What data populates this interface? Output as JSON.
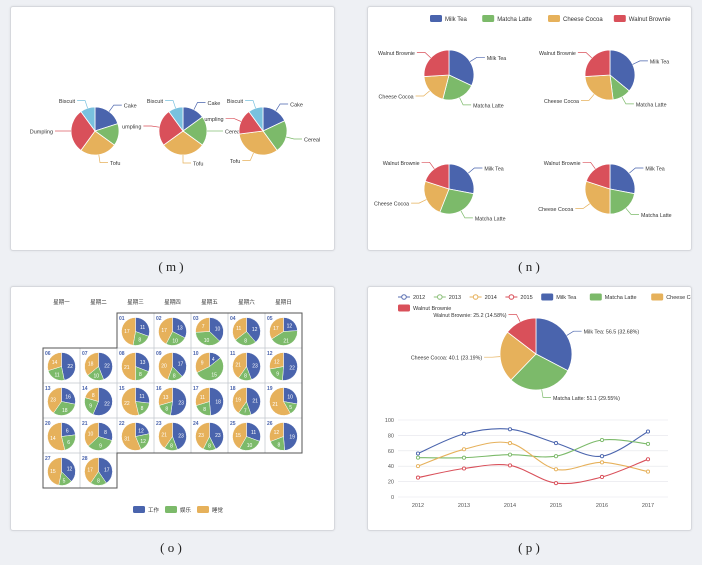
{
  "captions": [
    "( m )",
    "( n )",
    "( o )",
    "( p )"
  ],
  "colors": {
    "blue": "#4a64ad",
    "green": "#7cba6a",
    "orange": "#e6b15b",
    "red": "#d9505a",
    "lightblue": "#79c1de",
    "teal": "#39a4a4"
  },
  "chart_data": [
    {
      "type": "pie",
      "panel": "m",
      "pies": [
        {
          "labels": [
            "Cake",
            "Cereal",
            "Tofu",
            "Dumpling",
            "Biscuit"
          ],
          "values": [
            20,
            15,
            25,
            30,
            10
          ],
          "shown": [
            "Cake",
            "Tofu",
            "Dumpling",
            "Biscuit"
          ]
        },
        {
          "labels": [
            "Cake",
            "Cereal",
            "Tofu",
            "Dumpling",
            "Biscuit"
          ],
          "values": [
            15,
            20,
            30,
            25,
            10
          ],
          "shown": [
            "Cake",
            "Cereal",
            "Tofu",
            "Dumpling",
            "Biscuit"
          ]
        },
        {
          "labels": [
            "Cake",
            "Cereal",
            "Tofu",
            "Dumpling",
            "Biscuit"
          ],
          "values": [
            18,
            22,
            33,
            17,
            10
          ],
          "shown": [
            "Cake",
            "Cereal",
            "Tofu",
            "Dumpling",
            "Biscuit"
          ]
        }
      ],
      "short_labels": [
        "Cake",
        "Cereal",
        "Tofu",
        "umpling",
        "Biscuit"
      ]
    },
    {
      "type": "pie",
      "panel": "n",
      "legend": [
        "Milk Tea",
        "Matcha Latte",
        "Cheese Cocoa",
        "Walnut Brownie"
      ],
      "pies": [
        {
          "values": [
            32,
            22,
            20,
            26
          ]
        },
        {
          "values": [
            36,
            12,
            26,
            26
          ]
        },
        {
          "values": [
            28,
            28,
            24,
            20
          ]
        },
        {
          "values": [
            28,
            22,
            30,
            20
          ]
        }
      ]
    },
    {
      "type": "pie",
      "panel": "o",
      "weekdays": [
        "星期一",
        "星期二",
        "星期三",
        "星期四",
        "星期五",
        "星期六",
        "星期日"
      ],
      "legend": [
        "工作",
        "娱乐",
        "睡觉"
      ],
      "cells": [
        {
          "d": "01",
          "w": [
            11,
            8,
            17
          ]
        },
        {
          "d": "02",
          "w": [
            13,
            10,
            17
          ]
        },
        {
          "d": "03",
          "w": [
            10,
            10,
            7
          ]
        },
        {
          "d": "04",
          "w": [
            12,
            8,
            11
          ]
        },
        {
          "d": "05",
          "w": [
            12,
            21,
            17
          ]
        },
        {
          "d": "06",
          "w": [
            22,
            11,
            14
          ]
        },
        {
          "d": "07",
          "w": [
            22,
            10,
            18
          ]
        },
        {
          "d": "08",
          "w": [
            13,
            8,
            21
          ]
        },
        {
          "d": "09",
          "w": [
            17,
            8,
            20
          ]
        },
        {
          "d": "10",
          "w": [
            4,
            15,
            9
          ]
        },
        {
          "d": "11",
          "w": [
            23,
            8,
            21
          ]
        },
        {
          "d": "12",
          "w": [
            22,
            9,
            12
          ]
        },
        {
          "d": "13",
          "w": [
            16,
            18,
            23
          ]
        },
        {
          "d": "14",
          "w": [
            22,
            9,
            8
          ]
        },
        {
          "d": "15",
          "w": [
            11,
            8,
            22
          ]
        },
        {
          "d": "16",
          "w": [
            23,
            8,
            13
          ]
        },
        {
          "d": "17",
          "w": [
            18,
            8,
            11
          ]
        },
        {
          "d": "18",
          "w": [
            21,
            7,
            19
          ]
        },
        {
          "d": "19",
          "w": [
            10,
            5,
            21
          ]
        },
        {
          "d": "20",
          "w": [
            6,
            6,
            14
          ]
        },
        {
          "d": "21",
          "w": [
            8,
            9,
            10
          ]
        },
        {
          "d": "22",
          "w": [
            12,
            12,
            31
          ]
        },
        {
          "d": "23",
          "w": [
            23,
            8,
            21
          ]
        },
        {
          "d": "24",
          "w": [
            23,
            8,
            23
          ]
        },
        {
          "d": "25",
          "w": [
            11,
            10,
            15
          ]
        },
        {
          "d": "26",
          "w": [
            19,
            8,
            12
          ]
        },
        {
          "d": "27",
          "w": [
            12,
            5,
            15
          ]
        },
        {
          "d": "28",
          "w": [
            17,
            8,
            17
          ]
        }
      ]
    },
    {
      "type": "line",
      "panel": "p",
      "legend": [
        "2012",
        "2013",
        "2014",
        "2015",
        "Milk Tea",
        "Matcha Latte",
        "Cheese Cocoa",
        "Walnut Brownie"
      ],
      "pie": {
        "labels": [
          "Milk Tea",
          "Matcha Latte",
          "Cheese Cocoa",
          "Walnut Brownie"
        ],
        "values": [
          56.5,
          51.1,
          40.1,
          25.2
        ],
        "label_text": [
          "Milk Tea: 56.5 (32.68%)",
          "Matcha Latte: 51.1 (29.55%)",
          "Cheese Cocoa: 40.1 (23.19%)",
          "Walnut Brownie: 25.2 (14.58%)"
        ]
      },
      "categories": [
        "2012",
        "2013",
        "2014",
        "2015",
        "2016",
        "2017"
      ],
      "ylim": [
        0,
        100
      ],
      "yticks": [
        "0",
        "20",
        "40",
        "60",
        "80",
        "100"
      ],
      "series": [
        {
          "name": "Milk Tea",
          "values": [
            56.5,
            82,
            88,
            70,
            53,
            85
          ]
        },
        {
          "name": "Matcha Latte",
          "values": [
            51.1,
            51,
            55,
            53,
            74,
            69
          ]
        },
        {
          "name": "Cheese Cocoa",
          "values": [
            40.1,
            62,
            70,
            36,
            45,
            33
          ]
        },
        {
          "name": "Walnut Brownie",
          "values": [
            25.2,
            37,
            41,
            18,
            26,
            49
          ]
        }
      ]
    }
  ]
}
